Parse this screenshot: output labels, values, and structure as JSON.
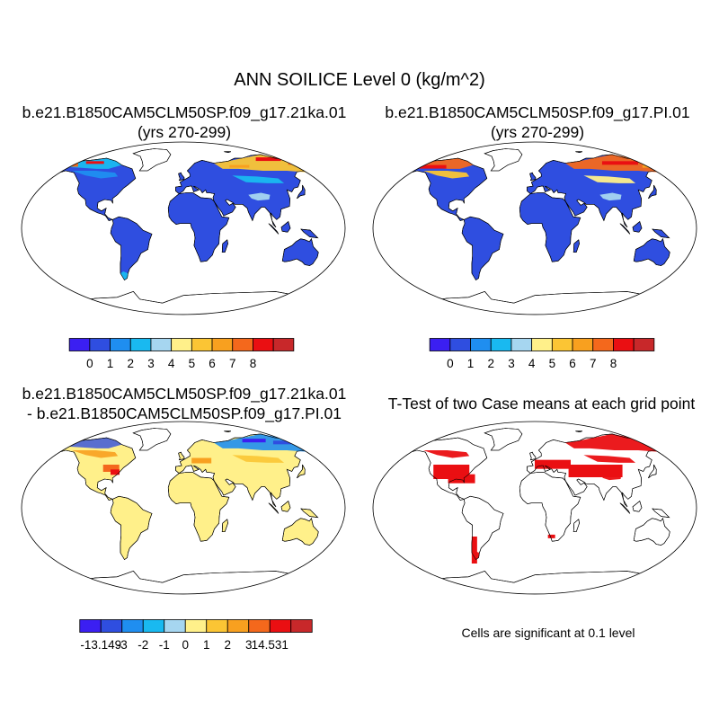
{
  "title": "ANN SOILICE Level 0 (kg/m^2)",
  "panels": [
    {
      "title_line1": "b.e21.B1850CAM5CLM50SP.f09_g17.21ka.01",
      "title_line2": "(yrs 270-299)"
    },
    {
      "title_line1": "b.e21.B1850CAM5CLM50SP.f09_g17.PI.01",
      "title_line2": "(yrs 270-299)"
    },
    {
      "title_line1": "b.e21.B1850CAM5CLM50SP.f09_g17.21ka.01",
      "title_line2": "- b.e21.B1850CAM5CLM50SP.f09_g17.PI.01"
    },
    {
      "title_line1": "T-Test of two Case means at each grid point"
    }
  ],
  "colorbar_field": {
    "colors": [
      "#3b1ff2",
      "#2f4ee0",
      "#1f8ef0",
      "#19b9f0",
      "#a6d6f0",
      "#fff08a",
      "#fbc534",
      "#f8a01f",
      "#f4681c",
      "#ea0f12",
      "#c8282a"
    ],
    "labels": [
      "0",
      "1",
      "2",
      "3",
      "4",
      "5",
      "6",
      "7",
      "8"
    ]
  },
  "colorbar_diff": {
    "colors": [
      "#3b1ff2",
      "#2f4ee0",
      "#1f8ef0",
      "#19b9f0",
      "#a6d6f0",
      "#fff08a",
      "#fbc534",
      "#f8a01f",
      "#f4681c",
      "#ea0f12",
      "#c8282a"
    ],
    "labels": [
      "-13.149",
      "-3",
      "-2",
      "-1",
      "0",
      "1",
      "2",
      "3",
      "14.531"
    ]
  },
  "significance_note": "Cells are significant at 0.1 level",
  "map_colors": {
    "ocean": "#ffffff",
    "low_field": "#2f4ee0",
    "diff_zero": "#fff08a",
    "significant": "#ea0f12"
  }
}
